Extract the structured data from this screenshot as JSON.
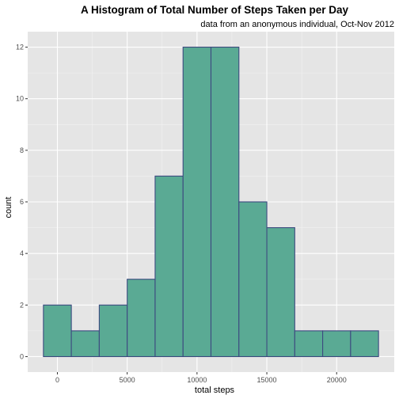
{
  "chart_data": {
    "type": "bar",
    "title": "A Histogram of Total Number of Steps Taken per Day",
    "subtitle": "data from an anonymous individual, Oct-Nov 2012",
    "xlabel": "total steps",
    "ylabel": "count",
    "xlim": [
      -2125,
      24125
    ],
    "ylim": [
      -0.6,
      12.6
    ],
    "x_ticks": [
      0,
      5000,
      10000,
      15000,
      20000
    ],
    "x_tick_labels": [
      "0",
      "5000",
      "10000",
      "15000",
      "20000"
    ],
    "y_ticks": [
      0,
      2,
      4,
      6,
      8,
      10,
      12
    ],
    "y_tick_labels": [
      "0",
      "2",
      "4",
      "6",
      "8",
      "10",
      "12"
    ],
    "bin_width": 2000,
    "bins": [
      {
        "x0": -1000,
        "x1": 1000,
        "count": 2
      },
      {
        "x0": 1000,
        "x1": 3000,
        "count": 1
      },
      {
        "x0": 3000,
        "x1": 5000,
        "count": 2
      },
      {
        "x0": 5000,
        "x1": 7000,
        "count": 3
      },
      {
        "x0": 7000,
        "x1": 9000,
        "count": 7
      },
      {
        "x0": 9000,
        "x1": 11000,
        "count": 12
      },
      {
        "x0": 11000,
        "x1": 13000,
        "count": 12
      },
      {
        "x0": 13000,
        "x1": 15000,
        "count": 6
      },
      {
        "x0": 15000,
        "x1": 17000,
        "count": 5
      },
      {
        "x0": 17000,
        "x1": 19000,
        "count": 1
      },
      {
        "x0": 19000,
        "x1": 21000,
        "count": 1
      },
      {
        "x0": 21000,
        "x1": 23000,
        "count": 1
      }
    ],
    "grid": true,
    "legend": "none",
    "colors": {
      "bar_fill": "#5aaa94",
      "bar_outline": "#3d4a80",
      "panel_background": "#e5e5e5",
      "grid_major": "#ffffff",
      "grid_minor": "#f2f2f2",
      "text": "#000000",
      "tick_text": "#4d4d4d"
    }
  }
}
